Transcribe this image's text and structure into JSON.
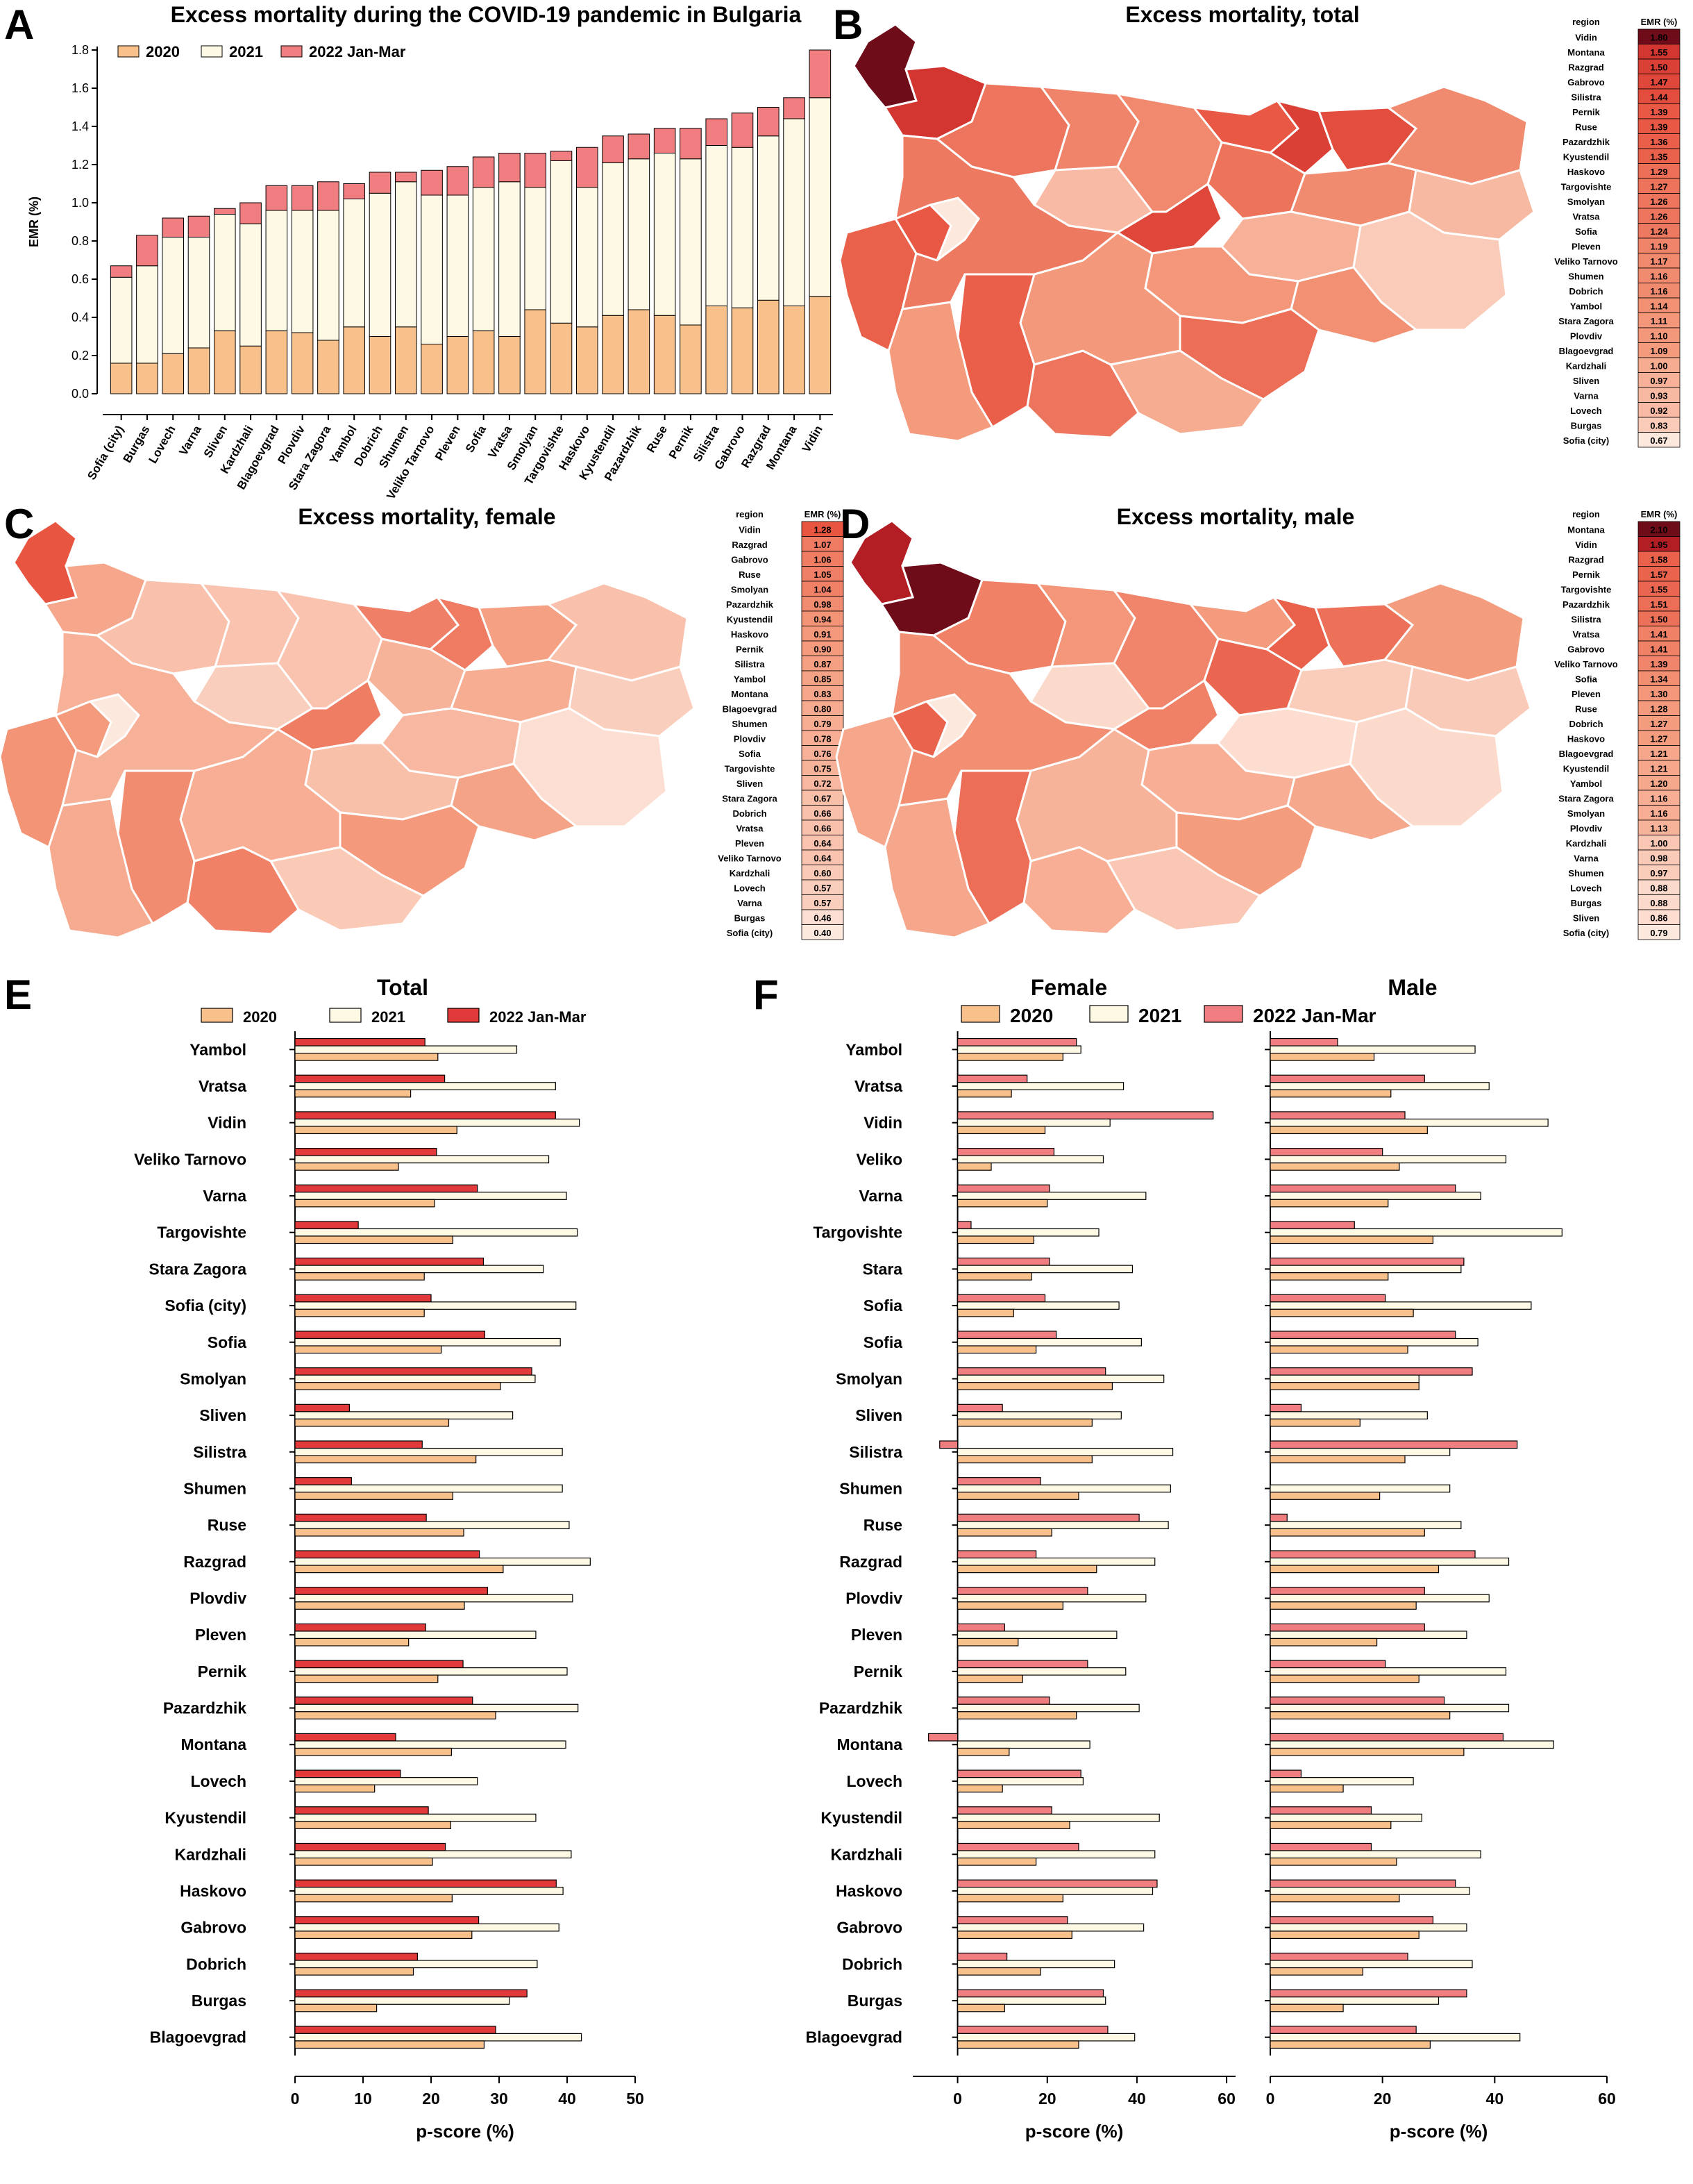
{
  "colors": {
    "y2020": "#f8c08a",
    "y2021": "#fef9e4",
    "y2022": "#f07e80",
    "y2022_total": "#e23a3a",
    "outline": "#000000",
    "map_low": "#fde6dc",
    "map_high": "#6b0f1a"
  },
  "panels": {
    "A": {
      "letter": "A",
      "title": "Excess mortality during the COVID-19 pandemic in Bulgaria"
    },
    "B": {
      "letter": "B",
      "title": "Excess mortality, total"
    },
    "C": {
      "letter": "C",
      "title": "Excess mortality, female"
    },
    "D": {
      "letter": "D",
      "title": "Excess mortality, male"
    },
    "E": {
      "letter": "E",
      "title": "Total"
    },
    "F": {
      "letter": "F",
      "title_female": "Female",
      "title_male": "Male"
    }
  },
  "chart_data": [
    {
      "id": "A",
      "type": "bar",
      "stacked": true,
      "title": "Excess mortality during the COVID-19 pandemic in Bulgaria",
      "ylabel": "EMR (%)",
      "ylim": [
        0,
        1.8
      ],
      "yticks": [
        "0.0",
        "0.2",
        "0.4",
        "0.6",
        "0.8",
        "1.0",
        "1.2",
        "1.4",
        "1.6",
        "1.8"
      ],
      "legend": [
        "2020",
        "2021",
        "2022 Jan-Mar"
      ],
      "legend_position": "top-left",
      "categories": [
        "Sofia (city)",
        "Burgas",
        "Lovech",
        "Varna",
        "Sliven",
        "Kardzhali",
        "Blagoevgrad",
        "Plovdiv",
        "Stara Zagora",
        "Yambol",
        "Dobrich",
        "Shumen",
        "Veliko Tarnovo",
        "Pleven",
        "Sofia",
        "Vratsa",
        "Smolyan",
        "Targovishte",
        "Haskovo",
        "Kyustendil",
        "Pazardzhik",
        "Ruse",
        "Pernik",
        "Silistra",
        "Gabrovo",
        "Razgrad",
        "Montana",
        "Vidin"
      ],
      "series": [
        {
          "name": "2020",
          "values": [
            0.16,
            0.16,
            0.21,
            0.24,
            0.33,
            0.25,
            0.33,
            0.32,
            0.28,
            0.35,
            0.3,
            0.35,
            0.26,
            0.3,
            0.33,
            0.3,
            0.44,
            0.37,
            0.35,
            0.41,
            0.44,
            0.41,
            0.36,
            0.46,
            0.45,
            0.49,
            0.46,
            0.51
          ]
        },
        {
          "name": "2021",
          "values": [
            0.45,
            0.51,
            0.61,
            0.58,
            0.61,
            0.64,
            0.63,
            0.64,
            0.68,
            0.67,
            0.75,
            0.76,
            0.78,
            0.74,
            0.75,
            0.81,
            0.64,
            0.85,
            0.73,
            0.8,
            0.79,
            0.85,
            0.87,
            0.84,
            0.84,
            0.86,
            0.98,
            1.04
          ]
        },
        {
          "name": "2022 Jan-Mar",
          "values": [
            0.06,
            0.16,
            0.1,
            0.11,
            0.03,
            0.11,
            0.13,
            0.13,
            0.15,
            0.08,
            0.11,
            0.05,
            0.13,
            0.15,
            0.16,
            0.15,
            0.18,
            0.05,
            0.21,
            0.14,
            0.13,
            0.13,
            0.16,
            0.14,
            0.18,
            0.15,
            0.11,
            0.25
          ]
        }
      ]
    },
    {
      "id": "E",
      "type": "bar",
      "orientation": "horizontal",
      "title": "Total",
      "xlabel": "p-score  (%)",
      "xlim": [
        0,
        50
      ],
      "xticks": [
        "0",
        "10",
        "20",
        "30",
        "40",
        "50"
      ],
      "legend": [
        "2020",
        "2021",
        "2022 Jan-Mar"
      ],
      "categories": [
        "Yambol",
        "Vratsa",
        "Vidin",
        "Veliko Tarnovo",
        "Varna",
        "Targovishte",
        "Stara Zagora",
        "Sofia (city)",
        "Sofia",
        "Smolyan",
        "Sliven",
        "Silistra",
        "Shumen",
        "Ruse",
        "Razgrad",
        "Plovdiv",
        "Pleven",
        "Pernik",
        "Pazardzhik",
        "Montana",
        "Lovech",
        "Kyustendil",
        "Kardzhali",
        "Haskovo",
        "Gabrovo",
        "Dobrich",
        "Burgas",
        "Blagoevgrad"
      ],
      "series": [
        {
          "name": "2022 Jan-Mar",
          "values": [
            19.1,
            22.0,
            38.3,
            20.8,
            26.8,
            9.3,
            27.7,
            20.0,
            27.9,
            34.8,
            8.0,
            18.7,
            8.3,
            19.3,
            27.1,
            28.3,
            19.2,
            24.7,
            26.1,
            14.8,
            15.5,
            19.6,
            22.1,
            38.4,
            27.0,
            18.0,
            34.1,
            29.5
          ]
        },
        {
          "name": "2021",
          "values": [
            32.6,
            38.3,
            41.8,
            37.3,
            39.9,
            41.5,
            36.5,
            41.3,
            39.0,
            35.3,
            32.0,
            39.3,
            39.3,
            40.3,
            43.4,
            40.8,
            35.4,
            40.0,
            41.6,
            39.8,
            26.8,
            35.4,
            40.6,
            39.4,
            38.8,
            35.6,
            31.5,
            42.1
          ]
        },
        {
          "name": "2020",
          "values": [
            21.0,
            17.0,
            23.8,
            15.2,
            20.5,
            23.2,
            19.0,
            19.0,
            21.5,
            30.2,
            22.6,
            26.6,
            23.2,
            24.8,
            30.6,
            24.9,
            16.7,
            21.0,
            29.5,
            23.0,
            11.7,
            22.9,
            20.2,
            23.1,
            26.0,
            17.4,
            12.0,
            27.8
          ]
        }
      ]
    },
    {
      "id": "F-female",
      "type": "bar",
      "orientation": "horizontal",
      "title": "Female",
      "xlabel": "p-score  (%)",
      "xlim": [
        -10,
        62
      ],
      "xticks": [
        "0",
        "20",
        "40",
        "60"
      ],
      "categories": [
        "Yambol",
        "Vratsa",
        "Vidin",
        "Veliko",
        "Varna",
        "Targovishte",
        "Stara",
        "Sofia",
        "Sofia",
        "Smolyan",
        "Sliven",
        "Silistra",
        "Shumen",
        "Ruse",
        "Razgrad",
        "Plovdiv",
        "Pleven",
        "Pernik",
        "Pazardzhik",
        "Montana",
        "Lovech",
        "Kyustendil",
        "Kardzhali",
        "Haskovo",
        "Gabrovo",
        "Dobrich",
        "Burgas",
        "Blagoevgrad"
      ],
      "series": [
        {
          "name": "2022 Jan-Mar",
          "values": [
            26.5,
            15.5,
            57.0,
            21.5,
            20.5,
            3.0,
            20.5,
            19.5,
            22.0,
            33.0,
            10.0,
            -4.0,
            18.5,
            40.5,
            17.5,
            29.0,
            10.5,
            29.0,
            20.5,
            -6.5,
            27.5,
            21.0,
            27.0,
            44.5,
            24.5,
            11.0,
            32.5,
            33.5
          ]
        },
        {
          "name": "2021",
          "values": [
            27.5,
            37.0,
            34.0,
            32.5,
            42.0,
            31.5,
            39.0,
            36.0,
            41.0,
            46.0,
            36.5,
            48.0,
            47.5,
            47.0,
            44.0,
            42.0,
            35.5,
            37.5,
            40.5,
            29.5,
            28.0,
            45.0,
            44.0,
            43.5,
            41.5,
            35.0,
            33.0,
            39.5
          ]
        },
        {
          "name": "2020",
          "values": [
            23.5,
            12.0,
            19.5,
            7.5,
            20.0,
            17.0,
            16.5,
            12.5,
            17.5,
            34.5,
            30.0,
            30.0,
            27.0,
            21.0,
            31.0,
            23.5,
            13.5,
            14.5,
            26.5,
            11.5,
            10.0,
            25.0,
            17.5,
            23.5,
            25.5,
            18.5,
            10.5,
            27.0
          ]
        }
      ]
    },
    {
      "id": "F-male",
      "type": "bar",
      "orientation": "horizontal",
      "title": "Male",
      "xlabel": "p-score  (%)",
      "xlim": [
        0,
        60
      ],
      "xticks": [
        "0",
        "20",
        "40",
        "60"
      ],
      "categories": [
        "Yambol",
        "Vratsa",
        "Vidin",
        "Veliko",
        "Varna",
        "Targovishte",
        "Stara",
        "Sofia",
        "Sofia",
        "Smolyan",
        "Sliven",
        "Silistra",
        "Shumen",
        "Ruse",
        "Razgrad",
        "Plovdiv",
        "Pleven",
        "Pernik",
        "Pazardzhik",
        "Montana",
        "Lovech",
        "Kyustendil",
        "Kardzhali",
        "Haskovo",
        "Gabrovo",
        "Dobrich",
        "Burgas",
        "Blagoevgrad"
      ],
      "series": [
        {
          "name": "2022 Jan-Mar",
          "values": [
            12.0,
            27.5,
            24.0,
            20.0,
            33.0,
            15.0,
            34.5,
            20.5,
            33.0,
            36.0,
            5.5,
            44.0,
            0,
            3.0,
            36.5,
            27.5,
            27.5,
            20.5,
            31.0,
            41.5,
            5.5,
            18.0,
            18.0,
            33.0,
            29.0,
            24.5,
            35.0,
            26.0
          ]
        },
        {
          "name": "2021",
          "values": [
            36.5,
            39.0,
            49.5,
            42.0,
            37.5,
            52.0,
            34.0,
            46.5,
            37.0,
            26.5,
            28.0,
            32.0,
            32.0,
            34.0,
            42.5,
            39.0,
            35.0,
            42.0,
            42.5,
            50.5,
            25.5,
            27.0,
            37.5,
            35.5,
            35.0,
            36.0,
            30.0,
            44.5
          ]
        },
        {
          "name": "2020",
          "values": [
            18.5,
            21.5,
            28.0,
            23.0,
            21.0,
            29.0,
            21.0,
            25.5,
            24.5,
            26.5,
            16.0,
            24.0,
            19.5,
            27.5,
            30.0,
            26.0,
            19.0,
            26.5,
            32.0,
            34.5,
            13.0,
            21.5,
            22.5,
            23.0,
            26.5,
            16.5,
            13.0,
            28.5
          ]
        }
      ]
    },
    {
      "id": "B-table",
      "type": "table",
      "columns": [
        "region",
        "EMR (%)"
      ],
      "rows": [
        [
          "Vidin",
          "1.80"
        ],
        [
          "Montana",
          "1.55"
        ],
        [
          "Razgrad",
          "1.50"
        ],
        [
          "Gabrovo",
          "1.47"
        ],
        [
          "Silistra",
          "1.44"
        ],
        [
          "Pernik",
          "1.39"
        ],
        [
          "Ruse",
          "1.39"
        ],
        [
          "Pazardzhik",
          "1.36"
        ],
        [
          "Kyustendil",
          "1.35"
        ],
        [
          "Haskovo",
          "1.29"
        ],
        [
          "Targovishte",
          "1.27"
        ],
        [
          "Smolyan",
          "1.26"
        ],
        [
          "Vratsa",
          "1.26"
        ],
        [
          "Sofia",
          "1.24"
        ],
        [
          "Pleven",
          "1.19"
        ],
        [
          "Veliko Tarnovo",
          "1.17"
        ],
        [
          "Shumen",
          "1.16"
        ],
        [
          "Dobrich",
          "1.16"
        ],
        [
          "Yambol",
          "1.14"
        ],
        [
          "Stara Zagora",
          "1.11"
        ],
        [
          "Plovdiv",
          "1.10"
        ],
        [
          "Blagoevgrad",
          "1.09"
        ],
        [
          "Kardzhali",
          "1.00"
        ],
        [
          "Sliven",
          "0.97"
        ],
        [
          "Varna",
          "0.93"
        ],
        [
          "Lovech",
          "0.92"
        ],
        [
          "Burgas",
          "0.83"
        ],
        [
          "Sofia (city)",
          "0.67"
        ]
      ]
    },
    {
      "id": "C-table",
      "type": "table",
      "columns": [
        "region",
        "EMR (%)"
      ],
      "rows": [
        [
          "Vidin",
          "1.28"
        ],
        [
          "Razgrad",
          "1.07"
        ],
        [
          "Gabrovo",
          "1.06"
        ],
        [
          "Ruse",
          "1.05"
        ],
        [
          "Smolyan",
          "1.04"
        ],
        [
          "Pazardzhik",
          "0.98"
        ],
        [
          "Kyustendil",
          "0.94"
        ],
        [
          "Haskovo",
          "0.91"
        ],
        [
          "Pernik",
          "0.90"
        ],
        [
          "Silistra",
          "0.87"
        ],
        [
          "Yambol",
          "0.85"
        ],
        [
          "Montana",
          "0.83"
        ],
        [
          "Blagoevgrad",
          "0.80"
        ],
        [
          "Shumen",
          "0.79"
        ],
        [
          "Plovdiv",
          "0.78"
        ],
        [
          "Sofia",
          "0.76"
        ],
        [
          "Targovishte",
          "0.75"
        ],
        [
          "Sliven",
          "0.72"
        ],
        [
          "Stara Zagora",
          "0.67"
        ],
        [
          "Dobrich",
          "0.66"
        ],
        [
          "Vratsa",
          "0.66"
        ],
        [
          "Pleven",
          "0.64"
        ],
        [
          "Veliko Tarnovo",
          "0.64"
        ],
        [
          "Kardzhali",
          "0.60"
        ],
        [
          "Lovech",
          "0.57"
        ],
        [
          "Varna",
          "0.57"
        ],
        [
          "Burgas",
          "0.46"
        ],
        [
          "Sofia (city)",
          "0.40"
        ]
      ]
    },
    {
      "id": "D-table",
      "type": "table",
      "columns": [
        "region",
        "EMR (%)"
      ],
      "rows": [
        [
          "Montana",
          "2.10"
        ],
        [
          "Vidin",
          "1.95"
        ],
        [
          "Razgrad",
          "1.58"
        ],
        [
          "Pernik",
          "1.57"
        ],
        [
          "Targovishte",
          "1.55"
        ],
        [
          "Pazardzhik",
          "1.51"
        ],
        [
          "Silistra",
          "1.50"
        ],
        [
          "Vratsa",
          "1.41"
        ],
        [
          "Gabrovo",
          "1.41"
        ],
        [
          "Veliko Tarnovo",
          "1.39"
        ],
        [
          "Sofia",
          "1.34"
        ],
        [
          "Pleven",
          "1.30"
        ],
        [
          "Ruse",
          "1.28"
        ],
        [
          "Dobrich",
          "1.27"
        ],
        [
          "Haskovo",
          "1.27"
        ],
        [
          "Blagoevgrad",
          "1.21"
        ],
        [
          "Kyustendil",
          "1.21"
        ],
        [
          "Yambol",
          "1.20"
        ],
        [
          "Stara Zagora",
          "1.16"
        ],
        [
          "Smolyan",
          "1.16"
        ],
        [
          "Plovdiv",
          "1.13"
        ],
        [
          "Kardzhali",
          "1.00"
        ],
        [
          "Varna",
          "0.98"
        ],
        [
          "Shumen",
          "0.97"
        ],
        [
          "Lovech",
          "0.88"
        ],
        [
          "Burgas",
          "0.88"
        ],
        [
          "Sliven",
          "0.86"
        ],
        [
          "Sofia (city)",
          "0.79"
        ]
      ]
    }
  ]
}
